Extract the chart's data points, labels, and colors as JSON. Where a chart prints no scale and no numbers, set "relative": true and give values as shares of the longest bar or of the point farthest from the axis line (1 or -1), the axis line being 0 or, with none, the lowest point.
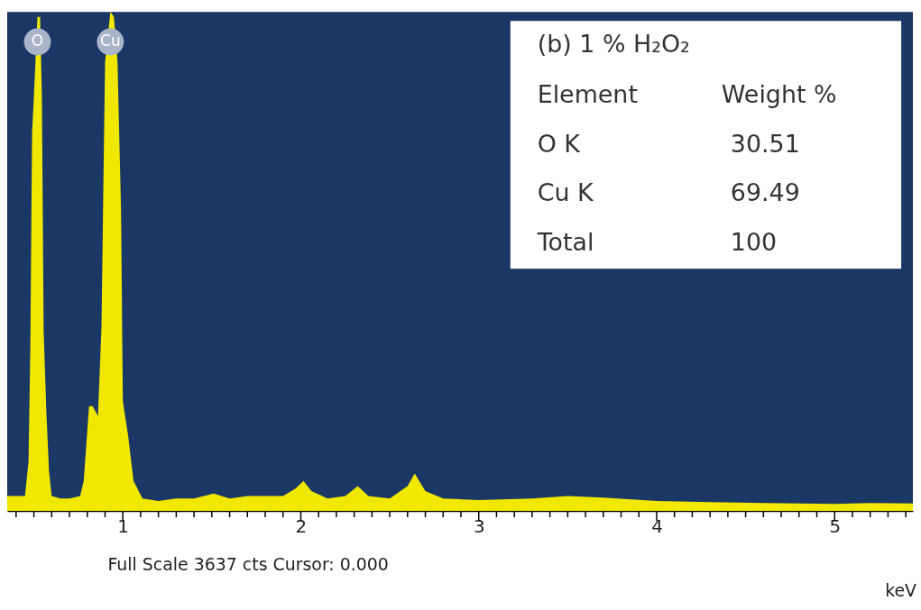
{
  "chart_data": {
    "type": "area",
    "relative": true,
    "xlabel": "keV",
    "x": [
      0.35,
      0.4,
      0.45,
      0.47,
      0.48,
      0.49,
      0.5,
      0.52,
      0.535,
      0.545,
      0.555,
      0.57,
      0.585,
      0.6,
      0.65,
      0.7,
      0.76,
      0.78,
      0.81,
      0.83,
      0.86,
      0.88,
      0.9,
      0.93,
      0.95,
      0.97,
      0.99,
      1.0,
      1.03,
      1.06,
      1.11,
      1.2,
      1.3,
      1.4,
      1.51,
      1.6,
      1.7,
      1.8,
      1.9,
      1.97,
      2.015,
      2.06,
      2.15,
      2.25,
      2.32,
      2.38,
      2.5,
      2.6,
      2.64,
      2.7,
      2.8,
      3.0,
      3.3,
      3.5,
      3.7,
      4.0,
      4.3,
      4.6,
      5.0,
      5.2,
      5.44
    ],
    "series": [
      {
        "color": "#f0e800",
        "values": [
          0.03,
          0.03,
          0.03,
          0.1,
          0.33,
          0.76,
          0.83,
          0.99,
          0.99,
          0.83,
          0.36,
          0.2,
          0.08,
          0.03,
          0.025,
          0.025,
          0.03,
          0.06,
          0.21,
          0.21,
          0.19,
          0.37,
          0.9,
          1.0,
          0.99,
          0.9,
          0.6,
          0.22,
          0.15,
          0.06,
          0.025,
          0.02,
          0.025,
          0.025,
          0.035,
          0.025,
          0.03,
          0.03,
          0.03,
          0.045,
          0.06,
          0.04,
          0.025,
          0.03,
          0.05,
          0.03,
          0.025,
          0.05,
          0.075,
          0.04,
          0.025,
          0.022,
          0.025,
          0.03,
          0.027,
          0.02,
          0.018,
          0.016,
          0.014,
          0.016,
          0.015
        ]
      }
    ],
    "xlim": [
      0.35,
      5.44
    ],
    "xticks": [
      {
        "value": 0.4,
        "label": null
      },
      {
        "value": 0.5,
        "label": null
      },
      {
        "value": 0.6,
        "label": null
      },
      {
        "value": 0.7,
        "label": null
      },
      {
        "value": 0.8,
        "label": null
      },
      {
        "value": 0.9,
        "label": null
      },
      1,
      {
        "value": 1.1,
        "label": null
      },
      {
        "value": 1.2,
        "label": null
      },
      {
        "value": 1.3,
        "label": null
      },
      {
        "value": 1.4,
        "label": null
      },
      {
        "value": 1.5,
        "label": null
      },
      {
        "value": 1.6,
        "label": null
      },
      {
        "value": 1.7,
        "label": null
      },
      {
        "value": 1.8,
        "label": null
      },
      {
        "value": 1.9,
        "label": null
      },
      2,
      {
        "value": 2.1,
        "label": null
      },
      {
        "value": 2.2,
        "label": null
      },
      {
        "value": 2.3,
        "label": null
      },
      {
        "value": 2.4,
        "label": null
      },
      {
        "value": 2.5,
        "label": null
      },
      {
        "value": 2.6,
        "label": null
      },
      {
        "value": 2.7,
        "label": null
      },
      {
        "value": 2.8,
        "label": null
      },
      {
        "value": 2.9,
        "label": null
      },
      3,
      {
        "value": 3.1,
        "label": null
      },
      {
        "value": 3.2,
        "label": null
      },
      {
        "value": 3.3,
        "label": null
      },
      {
        "value": 3.4,
        "label": null
      },
      {
        "value": 3.5,
        "label": null
      },
      {
        "value": 3.6,
        "label": null
      },
      {
        "value": 3.7,
        "label": null
      },
      {
        "value": 3.8,
        "label": null
      },
      {
        "value": 3.9,
        "label": null
      },
      4,
      {
        "value": 4.1,
        "label": null
      },
      {
        "value": 4.2,
        "label": null
      },
      {
        "value": 4.3,
        "label": null
      },
      {
        "value": 4.4,
        "label": null
      },
      {
        "value": 4.5,
        "label": null
      },
      {
        "value": 4.6,
        "label": null
      },
      {
        "value": 4.7,
        "label": null
      },
      {
        "value": 4.8,
        "label": null
      },
      {
        "value": 4.9,
        "label": null
      },
      5,
      {
        "value": 5.1,
        "label": null
      },
      {
        "value": 5.2,
        "label": null
      },
      {
        "value": 5.3,
        "label": null
      },
      {
        "value": 5.4,
        "label": null
      }
    ],
    "grid": false,
    "annotations": [
      {
        "text": "O",
        "x": 0.52,
        "y": 0.94
      },
      {
        "text": "Cu",
        "x": 0.93,
        "y": 0.94
      },
      "(b) 1 % H₂O₂",
      "Element",
      "Weight %",
      "O K",
      "30.51",
      "Cu K",
      "69.49",
      "Total",
      "100",
      "Full Scale 3637 cts Cursor: 0.000"
    ]
  }
}
